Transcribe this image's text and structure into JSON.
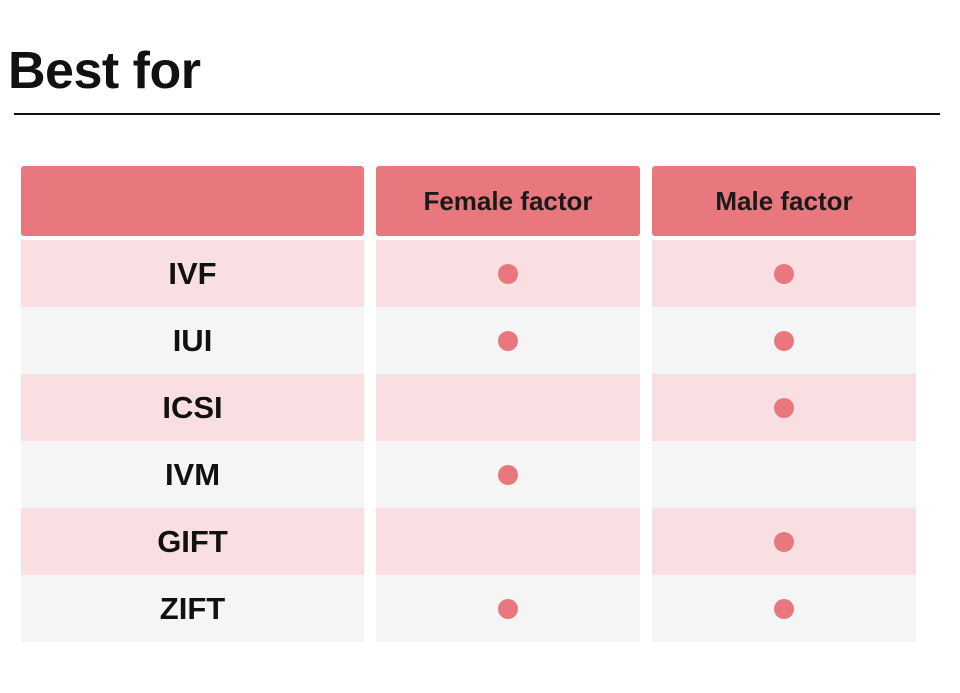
{
  "title": "Best for",
  "table": {
    "columns": [
      "",
      "Female factor",
      "Male factor"
    ],
    "rows": [
      {
        "method": "IVF",
        "female": true,
        "male": true
      },
      {
        "method": "IUI",
        "female": true,
        "male": true
      },
      {
        "method": "ICSI",
        "female": false,
        "male": true
      },
      {
        "method": "IVM",
        "female": true,
        "male": false
      },
      {
        "method": "GIFT",
        "female": false,
        "male": true
      },
      {
        "method": "ZIFT",
        "female": true,
        "male": true
      }
    ]
  },
  "colors": {
    "header": "#e8787e",
    "dot": "#e8787e",
    "row_tint": "#f9dfe1",
    "row_plain": "#f5f5f5"
  }
}
